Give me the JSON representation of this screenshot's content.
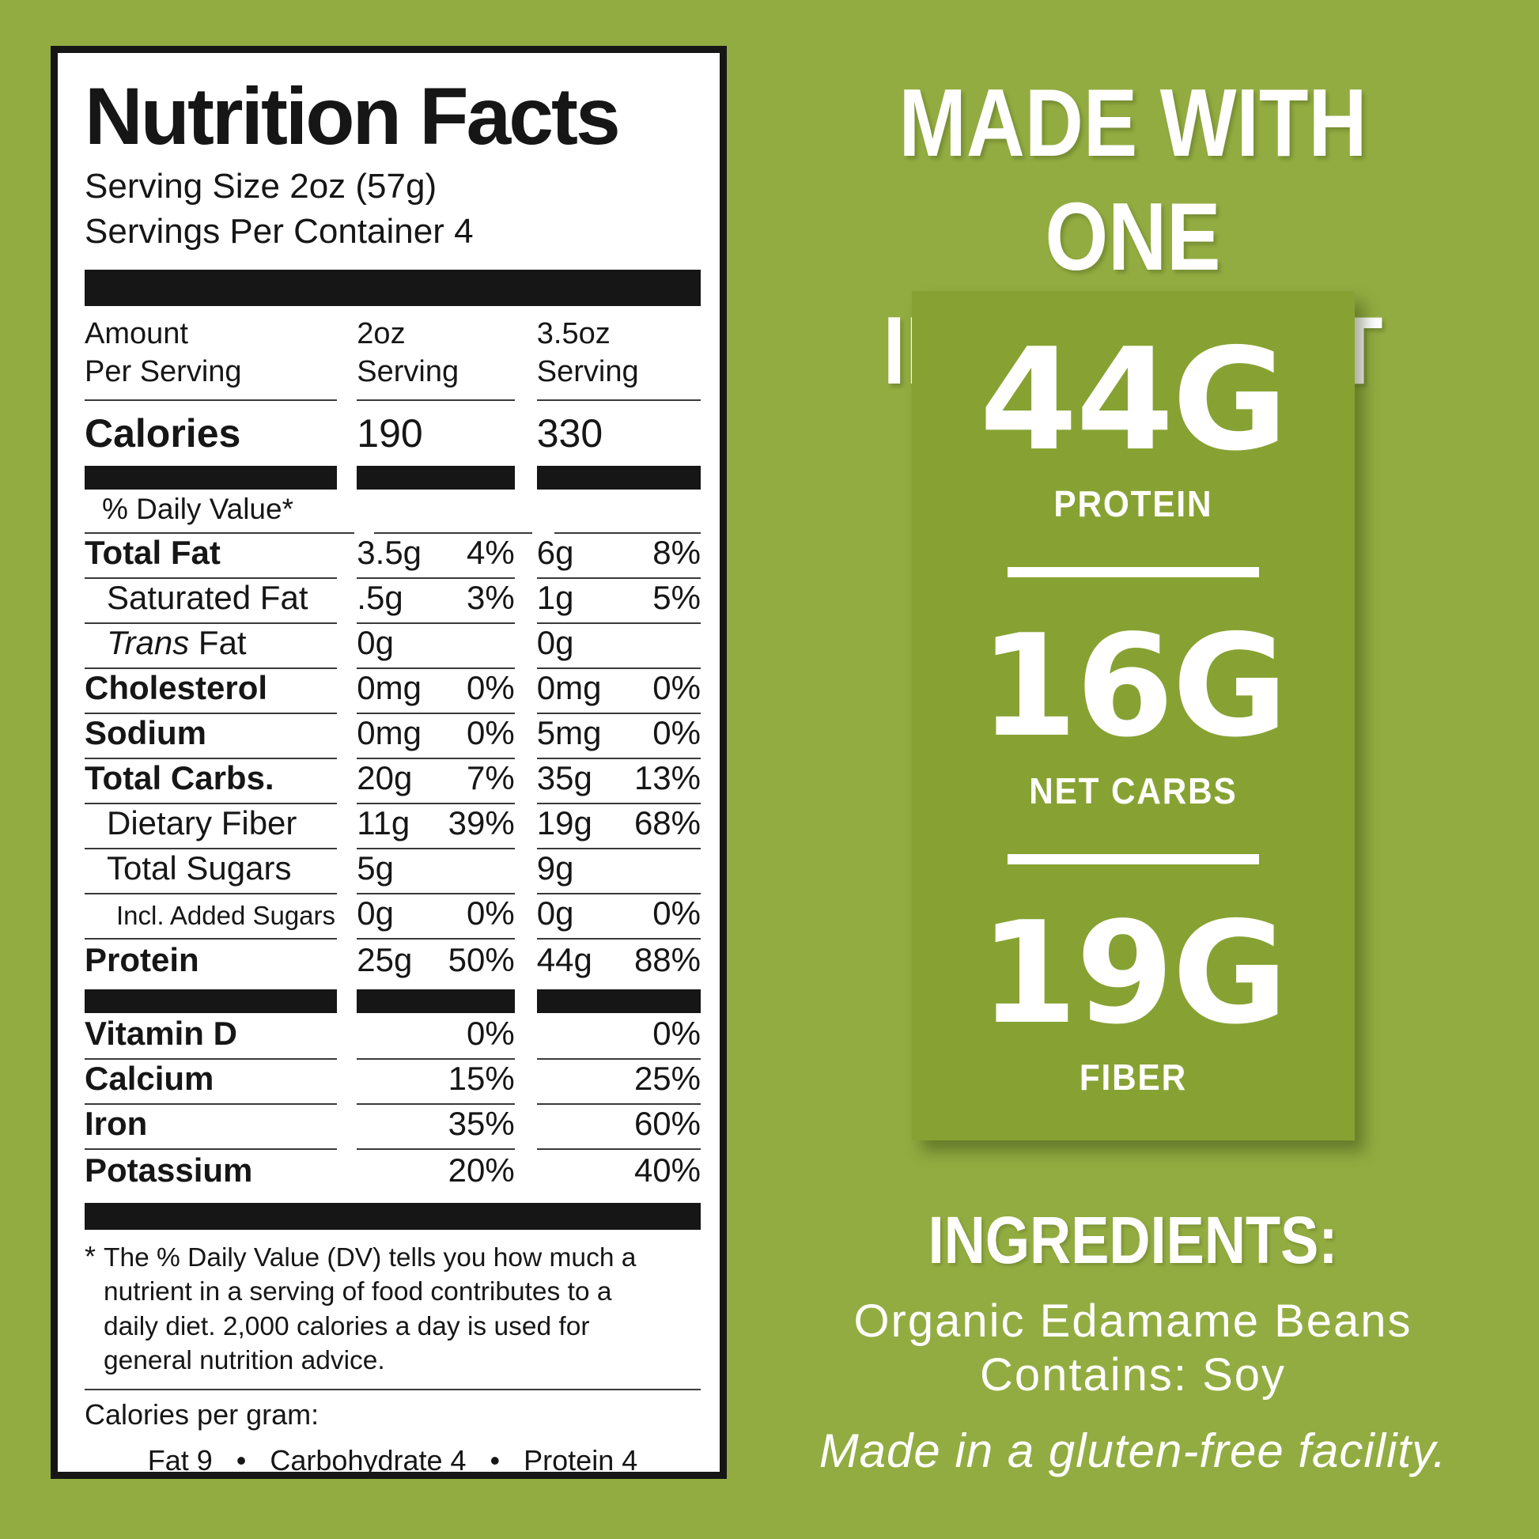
{
  "colors": {
    "background_green": "#92ac41",
    "stat_box_green": "#87a233",
    "label_background": "#ffffff",
    "label_border_black": "#161616",
    "text_white": "#ffffff"
  },
  "nutrition_label": {
    "title": "Nutrition Facts",
    "serving_size": "Serving Size 2oz (57g)",
    "servings_per_container": "Servings Per Container 4",
    "header": {
      "col1_line1": "Amount",
      "col1_line2": "Per Serving",
      "col2_line1": "2oz",
      "col2_line2": "Serving",
      "col3_line1": "3.5oz",
      "col3_line2": "Serving"
    },
    "calories": {
      "label": "Calories",
      "v1": "190",
      "v2": "330"
    },
    "daily_value_header": "% Daily Value*",
    "rows": [
      {
        "label": "Total Fat",
        "bold": true,
        "indent": 0,
        "v1": "3.5g",
        "p1": "4%",
        "v2": "6g",
        "p2": "8%"
      },
      {
        "label": "Saturated Fat",
        "bold": false,
        "indent": 1,
        "v1": ".5g",
        "p1": "3%",
        "v2": "1g",
        "p2": "5%"
      },
      {
        "label": " Fat",
        "italic_prefix": "Trans",
        "bold": false,
        "indent": 1,
        "v1": "0g",
        "p1": "",
        "v2": "0g",
        "p2": ""
      },
      {
        "label": "Cholesterol",
        "bold": true,
        "indent": 0,
        "v1": "0mg",
        "p1": "0%",
        "v2": "0mg",
        "p2": "0%"
      },
      {
        "label": "Sodium",
        "bold": true,
        "indent": 0,
        "v1": "0mg",
        "p1": "0%",
        "v2": "5mg",
        "p2": "0%"
      },
      {
        "label": "Total Carbs.",
        "bold": true,
        "indent": 0,
        "v1": "20g",
        "p1": "7%",
        "v2": "35g",
        "p2": "13%"
      },
      {
        "label": "Dietary Fiber",
        "bold": false,
        "indent": 1,
        "v1": "11g",
        "p1": "39%",
        "v2": "19g",
        "p2": "68%"
      },
      {
        "label": "Total Sugars",
        "bold": false,
        "indent": 1,
        "v1": "5g",
        "p1": "",
        "v2": "9g",
        "p2": ""
      },
      {
        "label": "Incl. Added Sugars",
        "bold": false,
        "indent": 2,
        "small": true,
        "v1": "0g",
        "p1": "0%",
        "v2": "0g",
        "p2": "0%"
      },
      {
        "label": "Protein",
        "bold": true,
        "indent": 0,
        "noline": true,
        "v1": "25g",
        "p1": "50%",
        "v2": "44g",
        "p2": "88%"
      }
    ],
    "vitamins": [
      {
        "label": "Vitamin D",
        "p1": "0%",
        "p2": "0%"
      },
      {
        "label": "Calcium",
        "p1": "15%",
        "p2": "25%"
      },
      {
        "label": "Iron",
        "p1": "35%",
        "p2": "60%"
      },
      {
        "label": "Potassium",
        "p1": "20%",
        "p2": "40%",
        "noline": true
      }
    ],
    "footnote_asterisk": "*",
    "footnote": "The % Daily Value (DV) tells you how much a nutrient in a serving of food contributes to a daily diet. 2,000 calories a day is used for general nutrition advice.",
    "calories_per_gram_label": "Calories per gram:",
    "calories_per_gram_items": "Fat 9   •   Carbohydrate 4   •   Protein 4"
  },
  "right_panel": {
    "headline_line1": "MADE WITH",
    "headline_line2": "ONE INGREDIENT",
    "stats": [
      {
        "value": "44G",
        "label": "PROTEIN"
      },
      {
        "value": "16G",
        "label": "NET CARBS"
      },
      {
        "value": "19G",
        "label": "FIBER"
      }
    ],
    "ingredients_title": "INGREDIENTS:",
    "ingredients_line1": "Organic Edamame Beans",
    "ingredients_line2": "Contains: Soy",
    "facility_note": "Made in a gluten-free facility."
  }
}
